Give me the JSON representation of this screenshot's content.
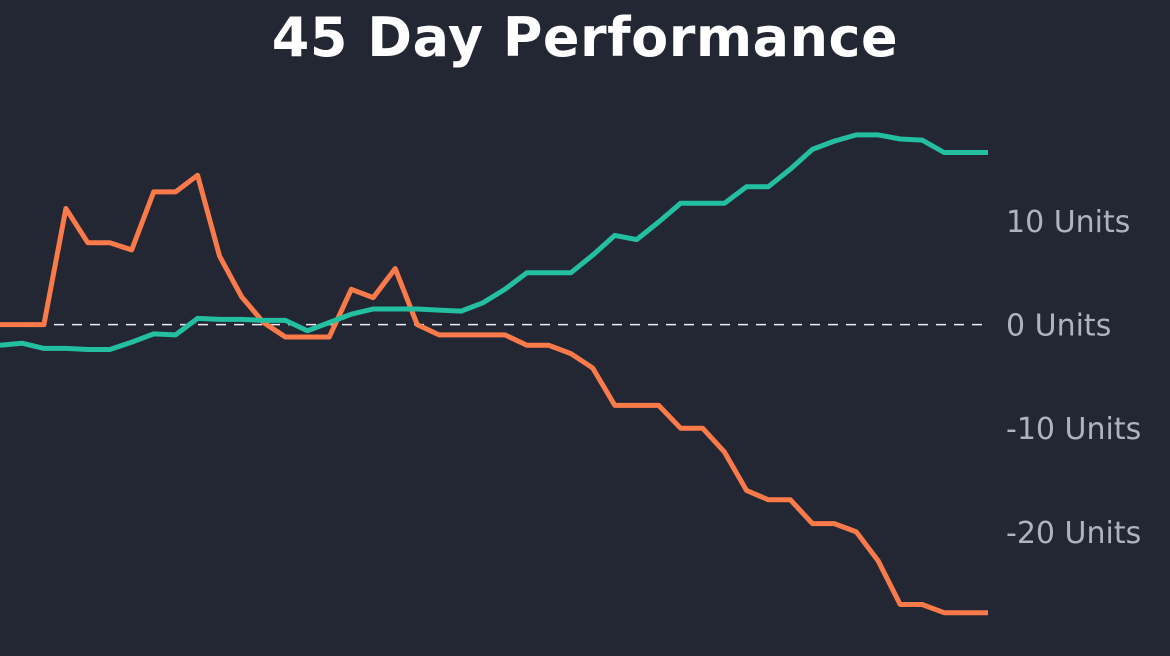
{
  "chart_data": {
    "type": "line",
    "title": "45 Day Performance",
    "xlabel": "",
    "ylabel": "",
    "ylim": [
      -28.5,
      18
    ],
    "y_ticks": [
      {
        "value": 10,
        "label": "10 Units"
      },
      {
        "value": 0,
        "label": "0 Units"
      },
      {
        "value": -10,
        "label": "-10 Units"
      },
      {
        "value": -20,
        "label": "-20 Units"
      }
    ],
    "y_axis_position": "right",
    "grid": false,
    "zero_line": "dashed",
    "legend": "none",
    "x": [
      0,
      1,
      2,
      3,
      4,
      5,
      6,
      7,
      8,
      9,
      10,
      11,
      12,
      13,
      14,
      15,
      16,
      17,
      18,
      19,
      20,
      21,
      22,
      23,
      24,
      25,
      26,
      27,
      28,
      29,
      30,
      31,
      32,
      33,
      34,
      35,
      36,
      37,
      38,
      39,
      40,
      41,
      42,
      43,
      44,
      45
    ],
    "series": [
      {
        "color": "#fb7a4a",
        "values": [
          0,
          0,
          0,
          11.2,
          7.9,
          7.9,
          7.2,
          12.8,
          12.8,
          14.4,
          6.6,
          2.7,
          0.2,
          -1.2,
          -1.2,
          -1.2,
          3.4,
          2.6,
          5.4,
          0,
          -1,
          -1,
          -1,
          -1,
          -2,
          -2,
          -2.8,
          -4.2,
          -7.8,
          -7.8,
          -7.8,
          -10,
          -10,
          -12.3,
          -16,
          -16.9,
          -16.9,
          -19.2,
          -19.2,
          -20,
          -22.8,
          -27,
          -27,
          -27.8,
          -27.8,
          -27.8
        ]
      },
      {
        "color": "#23bfa0",
        "values": [
          -2,
          -1.8,
          -2.3,
          -2.3,
          -2.4,
          -2.4,
          -1.7,
          -0.9,
          -1,
          0.6,
          0.5,
          0.5,
          0.4,
          0.4,
          -0.6,
          0.2,
          1,
          1.5,
          1.5,
          1.5,
          1.4,
          1.3,
          2.1,
          3.4,
          5,
          5,
          5,
          6.7,
          8.6,
          8.2,
          9.9,
          11.7,
          11.7,
          11.7,
          13.3,
          13.3,
          15,
          16.9,
          17.7,
          18.3,
          18.3,
          17.9,
          17.8,
          16.6,
          16.6,
          16.6
        ]
      }
    ]
  }
}
